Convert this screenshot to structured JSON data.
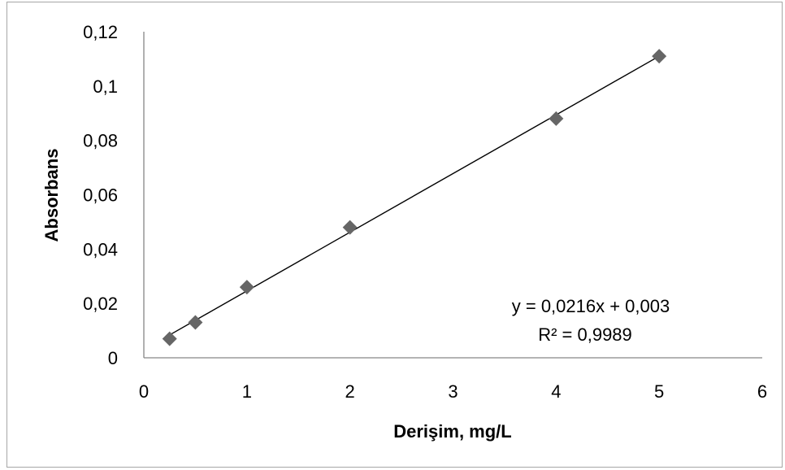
{
  "chart_data": {
    "type": "scatter",
    "xlabel": "Derişim, mg/L",
    "ylabel": "Absorbans",
    "xlim": [
      0,
      6
    ],
    "ylim": [
      0,
      0.12
    ],
    "x_ticks": [
      "0",
      "1",
      "2",
      "3",
      "4",
      "5",
      "6"
    ],
    "y_ticks": [
      "0",
      "0,02",
      "0,04",
      "0,06",
      "0,08",
      "0,1",
      "0,12"
    ],
    "grid": false,
    "series": [
      {
        "x": [
          0.25,
          0.5,
          1,
          2,
          4,
          5
        ],
        "y": [
          0.007,
          0.013,
          0.026,
          0.048,
          0.088,
          0.111
        ],
        "marker": "diamond",
        "color": "#666666"
      }
    ],
    "trendline": {
      "slope": 0.0216,
      "intercept": 0.003,
      "x_range": [
        0.25,
        5
      ],
      "color": "#000000",
      "equation": "y = 0,0216x + 0,003",
      "r_squared": "R² = 0,9989"
    }
  }
}
